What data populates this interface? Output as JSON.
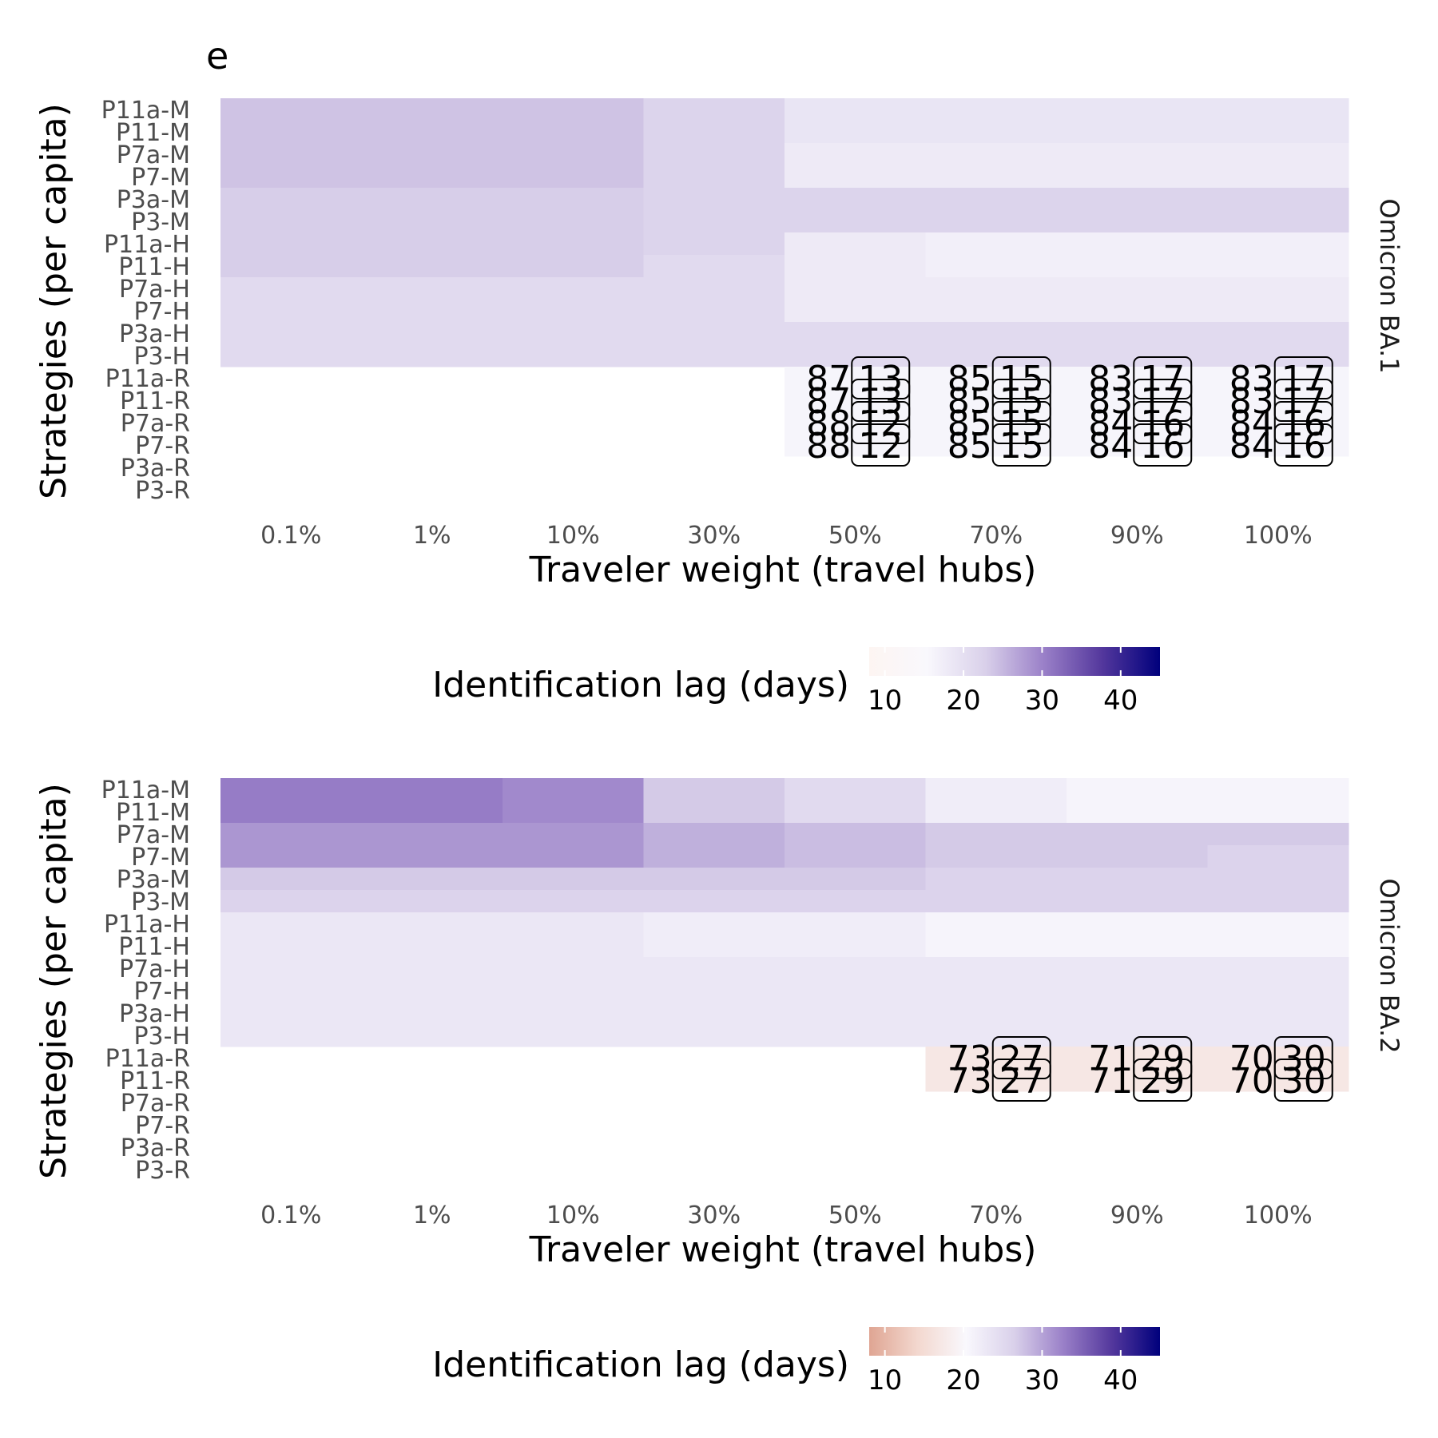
{
  "panel_label": "e",
  "chart_data": [
    {
      "type": "heatmap",
      "facet": "Omicron BA.1",
      "xlabel": "Traveler weight (travel hubs)",
      "ylabel": "Strategies (per capita)",
      "x_categories": [
        "0.1%",
        "1%",
        "10%",
        "30%",
        "50%",
        "70%",
        "90%",
        "100%"
      ],
      "y_categories": [
        "P11a-M",
        "P11-M",
        "P7a-M",
        "P7-M",
        "P3a-M",
        "P3-M",
        "P11a-H",
        "P11-H",
        "P7a-H",
        "P7-H",
        "P3a-H",
        "P3-H",
        "P11a-R",
        "P11-R",
        "P7a-R",
        "P7-R",
        "P3a-R",
        "P3-R"
      ],
      "values": [
        [
          24,
          24,
          24,
          22,
          19,
          19,
          19,
          19
        ],
        [
          24,
          24,
          24,
          22,
          19,
          19,
          19,
          19
        ],
        [
          24,
          24,
          24,
          22,
          18,
          18,
          18,
          18
        ],
        [
          24,
          24,
          24,
          22,
          18,
          18,
          18,
          18
        ],
        [
          23,
          23,
          23,
          22,
          22,
          22,
          22,
          22
        ],
        [
          23,
          23,
          23,
          22,
          22,
          22,
          22,
          22
        ],
        [
          23,
          23,
          23,
          22,
          18,
          17,
          17,
          17
        ],
        [
          23,
          23,
          23,
          21,
          18,
          17,
          17,
          17
        ],
        [
          21,
          21,
          21,
          21,
          18,
          18,
          18,
          18
        ],
        [
          21,
          21,
          21,
          21,
          18,
          18,
          18,
          18
        ],
        [
          21,
          21,
          21,
          21,
          21,
          21,
          21,
          21
        ],
        [
          21,
          21,
          21,
          21,
          21,
          21,
          21,
          21
        ],
        [
          null,
          null,
          null,
          null,
          16,
          16,
          16,
          16
        ],
        [
          null,
          null,
          null,
          null,
          16,
          16,
          16,
          16
        ],
        [
          null,
          null,
          null,
          null,
          16,
          16,
          16,
          16
        ],
        [
          null,
          null,
          null,
          null,
          16,
          16,
          16,
          16
        ],
        [
          null,
          null,
          null,
          null,
          null,
          null,
          null,
          null
        ],
        [
          null,
          null,
          null,
          null,
          null,
          null,
          null,
          null
        ]
      ],
      "annotations": [
        {
          "x": "50%",
          "y": "P11a-R",
          "left": "87",
          "right": "13"
        },
        {
          "x": "70%",
          "y": "P11a-R",
          "left": "85",
          "right": "15"
        },
        {
          "x": "90%",
          "y": "P11a-R",
          "left": "83",
          "right": "17"
        },
        {
          "x": "100%",
          "y": "P11a-R",
          "left": "83",
          "right": "17"
        },
        {
          "x": "50%",
          "y": "P11-R",
          "left": "87",
          "right": "13"
        },
        {
          "x": "70%",
          "y": "P11-R",
          "left": "85",
          "right": "15"
        },
        {
          "x": "90%",
          "y": "P11-R",
          "left": "83",
          "right": "17"
        },
        {
          "x": "100%",
          "y": "P11-R",
          "left": "83",
          "right": "17"
        },
        {
          "x": "50%",
          "y": "P7a-R",
          "left": "88",
          "right": "12"
        },
        {
          "x": "70%",
          "y": "P7a-R",
          "left": "85",
          "right": "15"
        },
        {
          "x": "90%",
          "y": "P7a-R",
          "left": "84",
          "right": "16"
        },
        {
          "x": "100%",
          "y": "P7a-R",
          "left": "84",
          "right": "16"
        },
        {
          "x": "50%",
          "y": "P7-R",
          "left": "88",
          "right": "12"
        },
        {
          "x": "70%",
          "y": "P7-R",
          "left": "85",
          "right": "15"
        },
        {
          "x": "90%",
          "y": "P7-R",
          "left": "84",
          "right": "16"
        },
        {
          "x": "100%",
          "y": "P7-R",
          "left": "84",
          "right": "16"
        }
      ],
      "legend": {
        "title": "Identification lag (days)",
        "ticks": [
          10,
          20,
          30,
          40
        ],
        "range": [
          8,
          45
        ],
        "gradient": [
          "#fdf5f2",
          "#f9f8fd",
          "#d9d0ea",
          "#9a80c8",
          "#54389d",
          "#00007c"
        ]
      }
    },
    {
      "type": "heatmap",
      "facet": "Omicron BA.2",
      "xlabel": "Traveler weight (travel hubs)",
      "ylabel": "Strategies (per capita)",
      "x_categories": [
        "0.1%",
        "1%",
        "10%",
        "30%",
        "50%",
        "70%",
        "90%",
        "100%"
      ],
      "y_categories": [
        "P11a-M",
        "P11-M",
        "P7a-M",
        "P7-M",
        "P3a-M",
        "P3-M",
        "P11a-H",
        "P11-H",
        "P7a-H",
        "P7-H",
        "P3a-H",
        "P3-H",
        "P11a-R",
        "P11-R",
        "P7a-R",
        "P7-R",
        "P3a-R",
        "P3-R"
      ],
      "values": [
        [
          33,
          33,
          32,
          27,
          25,
          22,
          21,
          21
        ],
        [
          33,
          33,
          32,
          27,
          25,
          22,
          21,
          21
        ],
        [
          31,
          31,
          31,
          29,
          28,
          27,
          27,
          27
        ],
        [
          31,
          31,
          31,
          29,
          28,
          27,
          27,
          26
        ],
        [
          27,
          27,
          27,
          27,
          27,
          26,
          26,
          26
        ],
        [
          26,
          26,
          26,
          26,
          26,
          26,
          26,
          26
        ],
        [
          23,
          23,
          23,
          22,
          22,
          21,
          21,
          21
        ],
        [
          23,
          23,
          23,
          22,
          22,
          21,
          21,
          21
        ],
        [
          23,
          23,
          23,
          23,
          23,
          23,
          23,
          23
        ],
        [
          23,
          23,
          23,
          23,
          23,
          23,
          23,
          23
        ],
        [
          23,
          23,
          23,
          23,
          23,
          23,
          23,
          23
        ],
        [
          23,
          23,
          23,
          23,
          23,
          23,
          23,
          23
        ],
        [
          null,
          null,
          null,
          null,
          null,
          17,
          17,
          17
        ],
        [
          null,
          null,
          null,
          null,
          null,
          17,
          17,
          17
        ],
        [
          null,
          null,
          null,
          null,
          null,
          null,
          null,
          null
        ],
        [
          null,
          null,
          null,
          null,
          null,
          null,
          null,
          null
        ],
        [
          null,
          null,
          null,
          null,
          null,
          null,
          null,
          null
        ],
        [
          null,
          null,
          null,
          null,
          null,
          null,
          null,
          null
        ]
      ],
      "annotations": [
        {
          "x": "70%",
          "y": "P11a-R",
          "left": "73",
          "right": "27"
        },
        {
          "x": "90%",
          "y": "P11a-R",
          "left": "71",
          "right": "29"
        },
        {
          "x": "100%",
          "y": "P11a-R",
          "left": "70",
          "right": "30"
        },
        {
          "x": "70%",
          "y": "P11-R",
          "left": "73",
          "right": "27"
        },
        {
          "x": "90%",
          "y": "P11-R",
          "left": "71",
          "right": "29"
        },
        {
          "x": "100%",
          "y": "P11-R",
          "left": "70",
          "right": "30"
        }
      ],
      "legend": {
        "title": "Identification lag (days)",
        "ticks": [
          10,
          20,
          30,
          40
        ],
        "range": [
          8,
          45
        ],
        "gradient": [
          "#dfa593",
          "#f3d8cf",
          "#f9f8fd",
          "#d9d0ea",
          "#9a80c8",
          "#54389d",
          "#00007c"
        ]
      }
    }
  ]
}
